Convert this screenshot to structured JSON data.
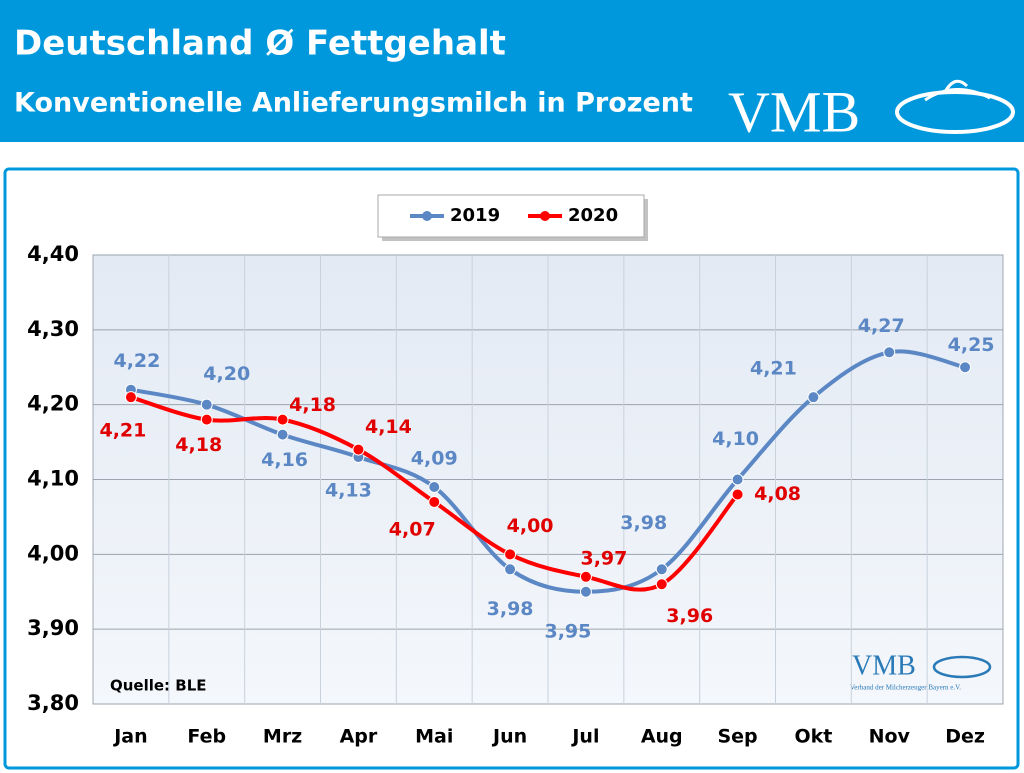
{
  "chart_data": {
    "type": "line",
    "title": "Deutschland Ø Fettgehalt",
    "subtitle": "Konventionelle Anlieferungsmilch in Prozent",
    "logo_text": "VMB",
    "logo_subtext": "Verband der Milcherzeuger Bayern e.V.",
    "source": "Quelle: BLE",
    "categories": [
      "Jan",
      "Feb",
      "Mrz",
      "Apr",
      "Mai",
      "Jun",
      "Jul",
      "Aug",
      "Sep",
      "Okt",
      "Nov",
      "Dez"
    ],
    "series": [
      {
        "name": "2019",
        "color": "#5b87c5",
        "label_color": "#5b87c5",
        "values": [
          4.22,
          4.2,
          4.16,
          4.13,
          4.09,
          3.98,
          3.95,
          3.98,
          4.1,
          4.21,
          4.27,
          4.25
        ],
        "value_labels": [
          "4,22",
          "4,20",
          "4,16",
          "4,13",
          "4,09",
          "3,98",
          "3,95",
          "3,98",
          "4,10",
          "4,21",
          "4,27",
          "4,25"
        ]
      },
      {
        "name": "2020",
        "color": "#ff0000",
        "label_color": "#e00000",
        "values": [
          4.21,
          4.18,
          4.18,
          4.14,
          4.07,
          4.0,
          3.97,
          3.96,
          4.08,
          null,
          null,
          null
        ],
        "value_labels": [
          "4,21",
          "4,18",
          "4,18",
          "4,14",
          "4,07",
          "4,00",
          "3,97",
          "3,96",
          "4,08",
          null,
          null,
          null
        ]
      }
    ],
    "ylim": [
      3.8,
      4.4
    ],
    "yticks": [
      {
        "value": 3.8,
        "label": "3,80"
      },
      {
        "value": 3.9,
        "label": "3,90"
      },
      {
        "value": 4.0,
        "label": "4,00"
      },
      {
        "value": 4.1,
        "label": "4,10"
      },
      {
        "value": 4.2,
        "label": "4,20"
      },
      {
        "value": 4.3,
        "label": "4,30"
      },
      {
        "value": 4.4,
        "label": "4,40"
      }
    ],
    "grid": true,
    "legend": "top"
  }
}
